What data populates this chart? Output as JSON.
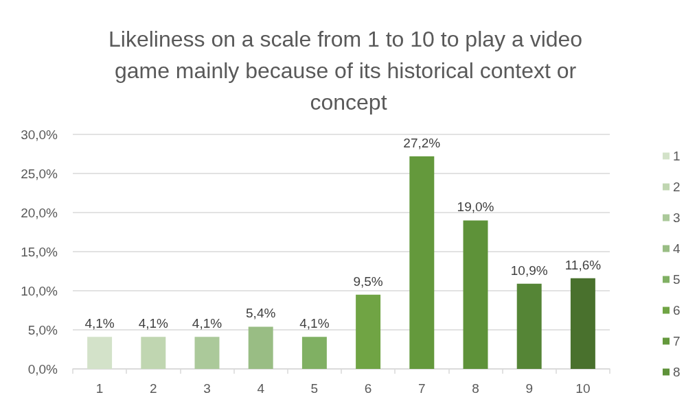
{
  "chart_data": {
    "type": "bar",
    "title": "Likeliness on a scale from 1 to 10 to play a video game mainly because of its historical context or concept",
    "categories": [
      "1",
      "2",
      "3",
      "4",
      "5",
      "6",
      "7",
      "8",
      "9",
      "10"
    ],
    "series": [
      {
        "name": "1",
        "color": "#d3e2c9",
        "values": [
          4.1,
          null,
          null,
          null,
          null,
          null,
          null,
          null,
          null,
          null
        ],
        "value_labels": [
          "4,1%",
          null,
          null,
          null,
          null,
          null,
          null,
          null,
          null,
          null
        ]
      },
      {
        "name": "2",
        "color": "#c0d6b1",
        "values": [
          null,
          4.1,
          null,
          null,
          null,
          null,
          null,
          null,
          null,
          null
        ],
        "value_labels": [
          null,
          "4,1%",
          null,
          null,
          null,
          null,
          null,
          null,
          null,
          null
        ]
      },
      {
        "name": "3",
        "color": "#abc99a",
        "values": [
          null,
          null,
          4.1,
          null,
          null,
          null,
          null,
          null,
          null,
          null
        ],
        "value_labels": [
          null,
          null,
          "4,1%",
          null,
          null,
          null,
          null,
          null,
          null,
          null
        ]
      },
      {
        "name": "4",
        "color": "#99bd84",
        "values": [
          null,
          null,
          null,
          5.4,
          null,
          null,
          null,
          null,
          null,
          null
        ],
        "value_labels": [
          null,
          null,
          null,
          "5,4%",
          null,
          null,
          null,
          null,
          null,
          null
        ]
      },
      {
        "name": "5",
        "color": "#80b063",
        "values": [
          null,
          null,
          null,
          null,
          4.1,
          null,
          null,
          null,
          null,
          null
        ],
        "value_labels": [
          null,
          null,
          null,
          null,
          "4,1%",
          null,
          null,
          null,
          null,
          null
        ]
      },
      {
        "name": "6",
        "color": "#70a444",
        "values": [
          null,
          null,
          null,
          null,
          null,
          9.5,
          null,
          null,
          null,
          null
        ],
        "value_labels": [
          null,
          null,
          null,
          null,
          null,
          "9,5%",
          null,
          null,
          null,
          null
        ]
      },
      {
        "name": "7",
        "color": "#64993c",
        "values": [
          null,
          null,
          null,
          null,
          null,
          null,
          27.2,
          null,
          null,
          null
        ],
        "value_labels": [
          null,
          null,
          null,
          null,
          null,
          null,
          "27,2%",
          null,
          null,
          null
        ]
      },
      {
        "name": "8",
        "color": "#5e9239",
        "values": [
          null,
          null,
          null,
          null,
          null,
          null,
          null,
          19.0,
          null,
          null
        ],
        "value_labels": [
          null,
          null,
          null,
          null,
          null,
          null,
          null,
          "19,0%",
          null,
          null
        ]
      },
      {
        "color": "#558536",
        "values": [
          null,
          null,
          null,
          null,
          null,
          null,
          null,
          null,
          10.9,
          null
        ],
        "value_labels": [
          null,
          null,
          null,
          null,
          null,
          null,
          null,
          null,
          "10,9%",
          null
        ]
      },
      {
        "color": "#49712d",
        "values": [
          null,
          null,
          null,
          null,
          null,
          null,
          null,
          null,
          null,
          11.6
        ],
        "value_labels": [
          null,
          null,
          null,
          null,
          null,
          null,
          null,
          null,
          null,
          "11,6%"
        ]
      }
    ],
    "ylim": [
      0,
      30
    ],
    "yticks": [
      {
        "value": 0,
        "label": "0,0%"
      },
      {
        "value": 5,
        "label": "5,0%"
      },
      {
        "value": 10,
        "label": "10,0%"
      },
      {
        "value": 15,
        "label": "15,0%"
      },
      {
        "value": 20,
        "label": "20,0%"
      },
      {
        "value": 25,
        "label": "25,0%"
      },
      {
        "value": 30,
        "label": "30,0%"
      }
    ],
    "grid": "y",
    "legend": "right"
  }
}
